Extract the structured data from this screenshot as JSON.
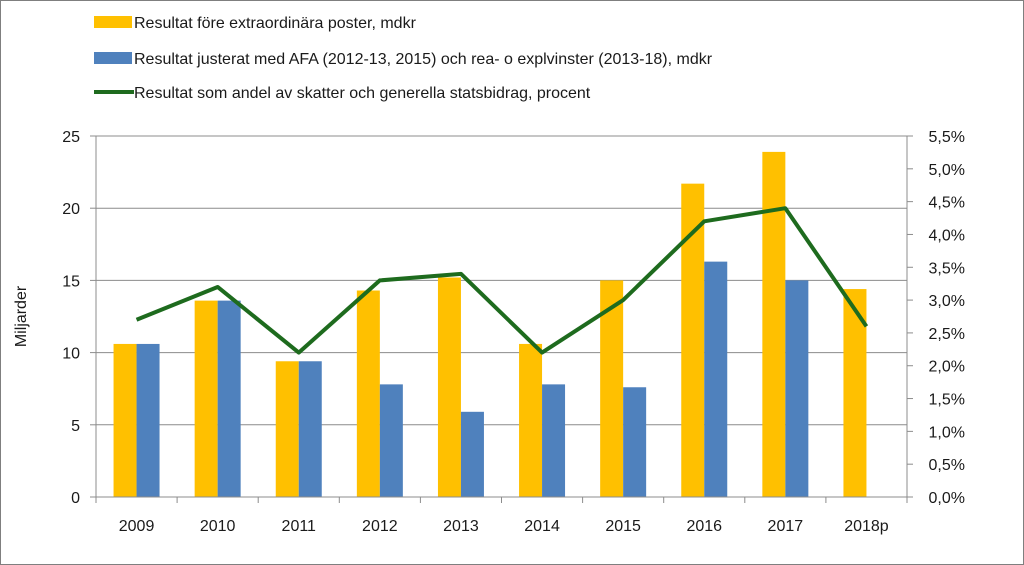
{
  "chart_data": {
    "type": "bar",
    "categories": [
      "2009",
      "2010",
      "2011",
      "2012",
      "2013",
      "2014",
      "2015",
      "2016",
      "2017",
      "2018p"
    ],
    "series": [
      {
        "name": "Resultat före extraordinära poster, mdkr",
        "type": "bar",
        "axis": "left",
        "color": "#FFC000",
        "values": [
          10.6,
          13.6,
          9.4,
          14.3,
          15.2,
          10.6,
          15.0,
          21.7,
          23.9,
          14.4
        ]
      },
      {
        "name": "Resultat justerat med AFA (2012-13, 2015) och rea- o explvinster (2013-18), mdkr",
        "type": "bar",
        "axis": "left",
        "color": "#4F81BD",
        "values": [
          10.6,
          13.6,
          9.4,
          7.8,
          5.9,
          7.8,
          7.6,
          16.3,
          15.0,
          null
        ]
      },
      {
        "name": "Resultat som andel av skatter och generella statsbidrag, procent",
        "type": "line",
        "axis": "right",
        "color": "#1E6B1E",
        "values": [
          2.7,
          3.2,
          2.2,
          3.3,
          3.4,
          2.2,
          3.0,
          4.2,
          4.4,
          2.6
        ]
      }
    ],
    "ylabel": "Miljarder",
    "ylim": [
      0,
      25
    ],
    "y_ticks": [
      "0",
      "5",
      "10",
      "15",
      "20",
      "25"
    ],
    "y2lim": [
      0,
      5.5
    ],
    "y2_ticks": [
      "0,0%",
      "0,5%",
      "1,0%",
      "1,5%",
      "2,0%",
      "2,5%",
      "3,0%",
      "3,5%",
      "4,0%",
      "4,5%",
      "5,0%",
      "5,5%"
    ],
    "grid": true,
    "legend_position": "top-left"
  }
}
